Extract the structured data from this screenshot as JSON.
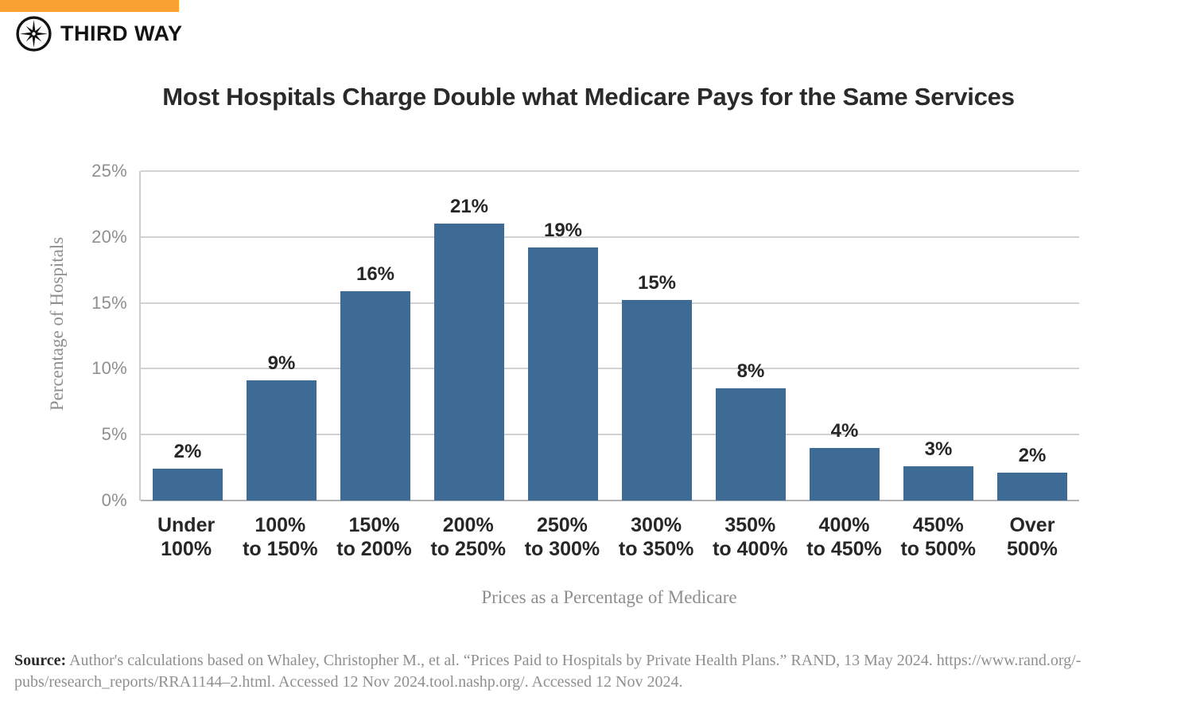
{
  "brand": {
    "name": "THIRD WAY",
    "accent_color": "#F9A233",
    "logo_icon": "compass-star-icon"
  },
  "chart_data": {
    "type": "bar",
    "title": "Most Hospitals Charge Double what Medicare Pays for the Same Services",
    "xlabel": "Prices as a Percentage of Medicare",
    "ylabel": "Percentage of Hospitals",
    "ylim": [
      0,
      25
    ],
    "grid": true,
    "legend_position": "none",
    "bar_color": "#3E6B95",
    "yticks": [
      {
        "value": 0,
        "label": "0%"
      },
      {
        "value": 5,
        "label": "5%"
      },
      {
        "value": 10,
        "label": "10%"
      },
      {
        "value": 15,
        "label": "15%"
      },
      {
        "value": 20,
        "label": "20%"
      },
      {
        "value": 25,
        "label": "25%"
      }
    ],
    "categories": [
      [
        "Under",
        "100%"
      ],
      [
        "100%",
        "to 150%"
      ],
      [
        "150%",
        "to 200%"
      ],
      [
        "200%",
        "to 250%"
      ],
      [
        "250%",
        "to 300%"
      ],
      [
        "300%",
        "to 350%"
      ],
      [
        "350%",
        "to 400%"
      ],
      [
        "400%",
        "to 450%"
      ],
      [
        "450%",
        "to 500%"
      ],
      [
        "Over",
        "500%"
      ]
    ],
    "values": [
      2.4,
      9.1,
      15.9,
      21.0,
      19.2,
      15.2,
      8.5,
      4.0,
      2.6,
      2.1
    ],
    "value_labels": [
      "2%",
      "9%",
      "16%",
      "21%",
      "19%",
      "15%",
      "8%",
      "4%",
      "3%",
      "2%"
    ]
  },
  "source": {
    "label": "Source:",
    "line1": "Author's calculations based on Whaley, Christopher M., et al. “Prices Paid to Hospitals by Private Health Plans.” RAND, 13 May 2024. https://www.rand.org/-",
    "line2": "pubs/research_reports/RRA1144–2.html. Accessed 12 Nov 2024.tool.nashp.org/. Accessed 12 Nov 2024."
  }
}
